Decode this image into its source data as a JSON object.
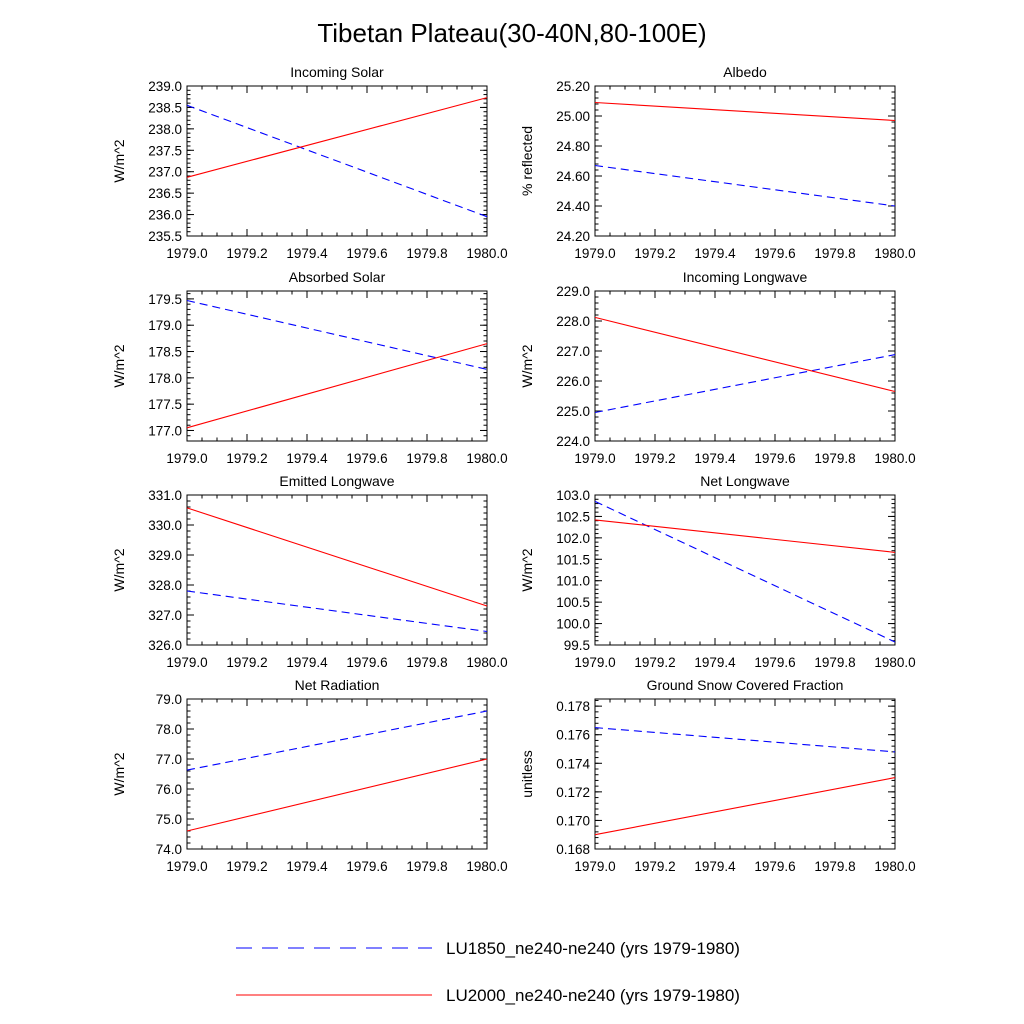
{
  "figure": {
    "title": "Tibetan Plateau(30-40N,80-100E)"
  },
  "colors": {
    "LU1850": "#0000ff",
    "LU2000": "#ff0000",
    "axis": "#000000"
  },
  "legend": [
    {
      "name": "LU1850_ne240-ne240 (yrs 1979-1980)",
      "style": "dashed",
      "color": "#0000ff"
    },
    {
      "name": "LU2000_ne240-ne240 (yrs 1979-1980)",
      "style": "solid",
      "color": "#ff0000"
    }
  ],
  "chart_data": [
    {
      "type": "line",
      "title": "Incoming Solar",
      "ylabel": "W/m^2",
      "xlabel": "",
      "xlim": [
        1979.0,
        1980.0
      ],
      "ylim": [
        235.5,
        239.0
      ],
      "xticks": [
        "1979.0",
        "1979.2",
        "1979.4",
        "1979.6",
        "1979.8",
        "1980.0"
      ],
      "yticks": [
        "235.5",
        "236.0",
        "236.5",
        "237.0",
        "237.5",
        "238.0",
        "238.5",
        "239.0"
      ],
      "series": [
        {
          "name": "LU1850_ne240-ne240 (yrs 1979-1980)",
          "x": [
            1979.0,
            1980.0
          ],
          "y": [
            238.55,
            235.95
          ]
        },
        {
          "name": "LU2000_ne240-ne240 (yrs 1979-1980)",
          "x": [
            1979.0,
            1980.0
          ],
          "y": [
            236.87,
            238.73
          ]
        }
      ]
    },
    {
      "type": "line",
      "title": "Albedo",
      "ylabel": "% reflected",
      "xlabel": "",
      "xlim": [
        1979.0,
        1980.0
      ],
      "ylim": [
        24.2,
        25.2
      ],
      "xticks": [
        "1979.0",
        "1979.2",
        "1979.4",
        "1979.6",
        "1979.8",
        "1980.0"
      ],
      "yticks": [
        "24.20",
        "24.40",
        "24.60",
        "24.80",
        "25.00",
        "25.20"
      ],
      "series": [
        {
          "name": "LU1850_ne240-ne240 (yrs 1979-1980)",
          "x": [
            1979.0,
            1980.0
          ],
          "y": [
            24.67,
            24.4
          ]
        },
        {
          "name": "LU2000_ne240-ne240 (yrs 1979-1980)",
          "x": [
            1979.0,
            1980.0
          ],
          "y": [
            25.09,
            24.97
          ]
        }
      ]
    },
    {
      "type": "line",
      "title": "Absorbed Solar",
      "ylabel": "W/m^2",
      "xlabel": "",
      "xlim": [
        1979.0,
        1980.0
      ],
      "ylim": [
        176.8,
        179.65
      ],
      "xticks": [
        "1979.0",
        "1979.2",
        "1979.4",
        "1979.6",
        "1979.8",
        "1980.0"
      ],
      "yticks": [
        "177.0",
        "177.5",
        "178.0",
        "178.5",
        "179.0",
        "179.5"
      ],
      "series": [
        {
          "name": "LU1850_ne240-ne240 (yrs 1979-1980)",
          "x": [
            1979.0,
            1980.0
          ],
          "y": [
            179.47,
            178.16
          ]
        },
        {
          "name": "LU2000_ne240-ne240 (yrs 1979-1980)",
          "x": [
            1979.0,
            1980.0
          ],
          "y": [
            177.05,
            178.65
          ]
        }
      ]
    },
    {
      "type": "line",
      "title": "Incoming Longwave",
      "ylabel": "W/m^2",
      "xlabel": "",
      "xlim": [
        1979.0,
        1980.0
      ],
      "ylim": [
        224.0,
        229.0
      ],
      "xticks": [
        "1979.0",
        "1979.2",
        "1979.4",
        "1979.6",
        "1979.8",
        "1980.0"
      ],
      "yticks": [
        "224.0",
        "225.0",
        "226.0",
        "227.0",
        "228.0",
        "229.0"
      ],
      "series": [
        {
          "name": "LU1850_ne240-ne240 (yrs 1979-1980)",
          "x": [
            1979.0,
            1980.0
          ],
          "y": [
            224.95,
            226.88
          ]
        },
        {
          "name": "LU2000_ne240-ne240 (yrs 1979-1980)",
          "x": [
            1979.0,
            1980.0
          ],
          "y": [
            228.12,
            225.65
          ]
        }
      ]
    },
    {
      "type": "line",
      "title": "Emitted Longwave",
      "ylabel": "W/m^2",
      "xlabel": "",
      "xlim": [
        1979.0,
        1980.0
      ],
      "ylim": [
        326.0,
        331.0
      ],
      "xticks": [
        "1979.0",
        "1979.2",
        "1979.4",
        "1979.6",
        "1979.8",
        "1980.0"
      ],
      "yticks": [
        "326.0",
        "327.0",
        "328.0",
        "329.0",
        "330.0",
        "331.0"
      ],
      "series": [
        {
          "name": "LU1850_ne240-ne240 (yrs 1979-1980)",
          "x": [
            1979.0,
            1980.0
          ],
          "y": [
            327.8,
            326.45
          ]
        },
        {
          "name": "LU2000_ne240-ne240 (yrs 1979-1980)",
          "x": [
            1979.0,
            1980.0
          ],
          "y": [
            330.57,
            327.3
          ]
        }
      ]
    },
    {
      "type": "line",
      "title": "Net Longwave",
      "ylabel": "W/m^2",
      "xlabel": "",
      "xlim": [
        1979.0,
        1980.0
      ],
      "ylim": [
        99.5,
        103.0
      ],
      "xticks": [
        "1979.0",
        "1979.2",
        "1979.4",
        "1979.6",
        "1979.8",
        "1980.0"
      ],
      "yticks": [
        "99.5",
        "100.0",
        "100.5",
        "101.0",
        "101.5",
        "102.0",
        "102.5",
        "103.0"
      ],
      "series": [
        {
          "name": "LU1850_ne240-ne240 (yrs 1979-1980)",
          "x": [
            1979.0,
            1980.0
          ],
          "y": [
            102.85,
            99.57
          ]
        },
        {
          "name": "LU2000_ne240-ne240 (yrs 1979-1980)",
          "x": [
            1979.0,
            1980.0
          ],
          "y": [
            102.42,
            101.66
          ]
        }
      ]
    },
    {
      "type": "line",
      "title": "Net Radiation",
      "ylabel": "W/m^2",
      "xlabel": "",
      "xlim": [
        1979.0,
        1980.0
      ],
      "ylim": [
        74.0,
        79.0
      ],
      "xticks": [
        "1979.0",
        "1979.2",
        "1979.4",
        "1979.6",
        "1979.8",
        "1980.0"
      ],
      "yticks": [
        "74.0",
        "75.0",
        "76.0",
        "77.0",
        "78.0",
        "79.0"
      ],
      "series": [
        {
          "name": "LU1850_ne240-ne240 (yrs 1979-1980)",
          "x": [
            1979.0,
            1980.0
          ],
          "y": [
            76.63,
            78.6
          ]
        },
        {
          "name": "LU2000_ne240-ne240 (yrs 1979-1980)",
          "x": [
            1979.0,
            1980.0
          ],
          "y": [
            74.6,
            77.0
          ]
        }
      ]
    },
    {
      "type": "line",
      "title": "Ground Snow Covered Fraction",
      "ylabel": "unitless",
      "xlabel": "",
      "xlim": [
        1979.0,
        1980.0
      ],
      "ylim": [
        0.168,
        0.1785
      ],
      "xticks": [
        "1979.0",
        "1979.2",
        "1979.4",
        "1979.6",
        "1979.8",
        "1980.0"
      ],
      "yticks": [
        "0.168",
        "0.170",
        "0.172",
        "0.174",
        "0.176",
        "0.178"
      ],
      "series": [
        {
          "name": "LU1850_ne240-ne240 (yrs 1979-1980)",
          "x": [
            1979.0,
            1980.0
          ],
          "y": [
            0.1765,
            0.1748
          ]
        },
        {
          "name": "LU2000_ne240-ne240 (yrs 1979-1980)",
          "x": [
            1979.0,
            1980.0
          ],
          "y": [
            0.169,
            0.173
          ]
        }
      ]
    }
  ]
}
